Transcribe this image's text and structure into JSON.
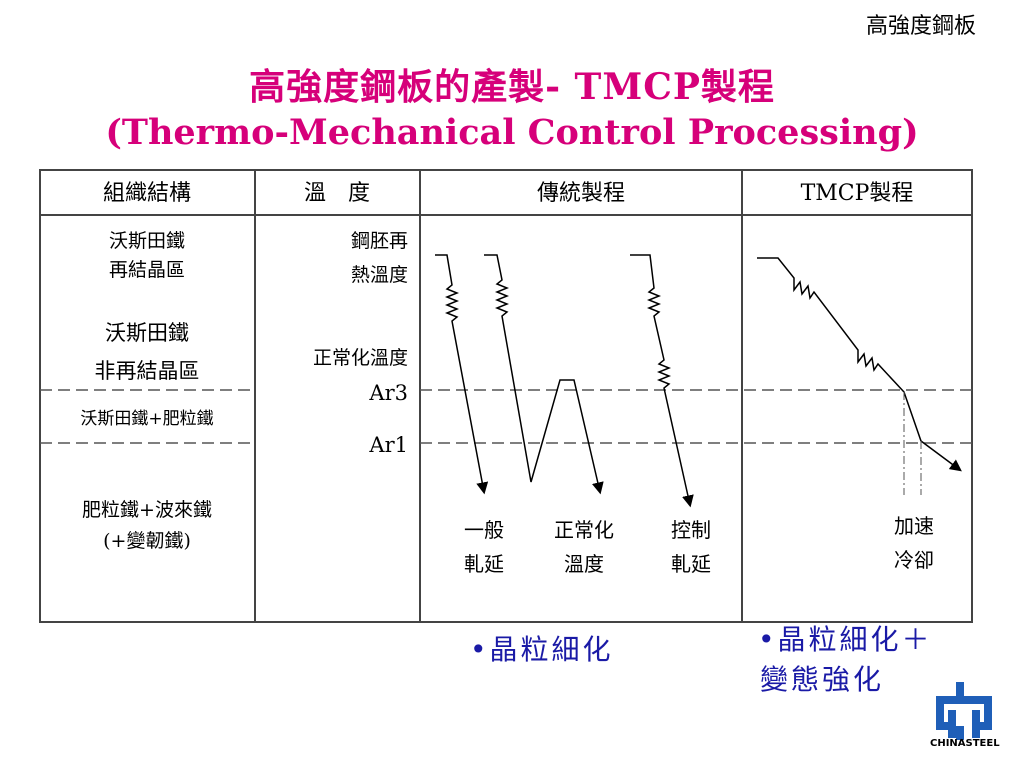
{
  "corner_label": "高強度鋼板",
  "title_line1": "高強度鋼板的產製- TMCP製程",
  "title_line2": "(Thermo-Mechanical Control Processing)",
  "table": {
    "headers": [
      "組織結構",
      "溫　度",
      "傳統製程",
      "TMCP製程"
    ],
    "structure": {
      "austenite_recryst_1": "沃斯田鐵",
      "austenite_recryst_2": "再結晶區",
      "austenite_nonrecryst_1": "沃斯田鐵",
      "austenite_nonrecryst_2": "非再結晶區",
      "austenite_ferrite": "沃斯田鐵+肥粒鐵",
      "ferrite_pearlite_1": "肥粒鐵+波來鐵",
      "ferrite_pearlite_2": "(+變韌鐵)"
    },
    "temperature": {
      "reheat_1": "鋼胚再",
      "reheat_2": "熱溫度",
      "normalizing": "正常化溫度",
      "ar3": "Ar3",
      "ar1": "Ar1"
    },
    "conventional": {
      "general_1": "一般",
      "general_2": "軋延",
      "normalizing_1": "正常化",
      "normalizing_2": "溫度",
      "controlled_1": "控制",
      "controlled_2": "軋延"
    },
    "tmcp": {
      "accel_1": "加速",
      "accel_2": "冷卻"
    }
  },
  "bullets": {
    "conventional": "•晶粒細化",
    "tmcp_1": "•晶粒細化＋",
    "tmcp_2": "變態強化"
  },
  "logo_text": "CHINASTEEL",
  "colors": {
    "title": "#d6007a",
    "bullet": "#1a1aa6",
    "logo": "#1f5fb8"
  }
}
